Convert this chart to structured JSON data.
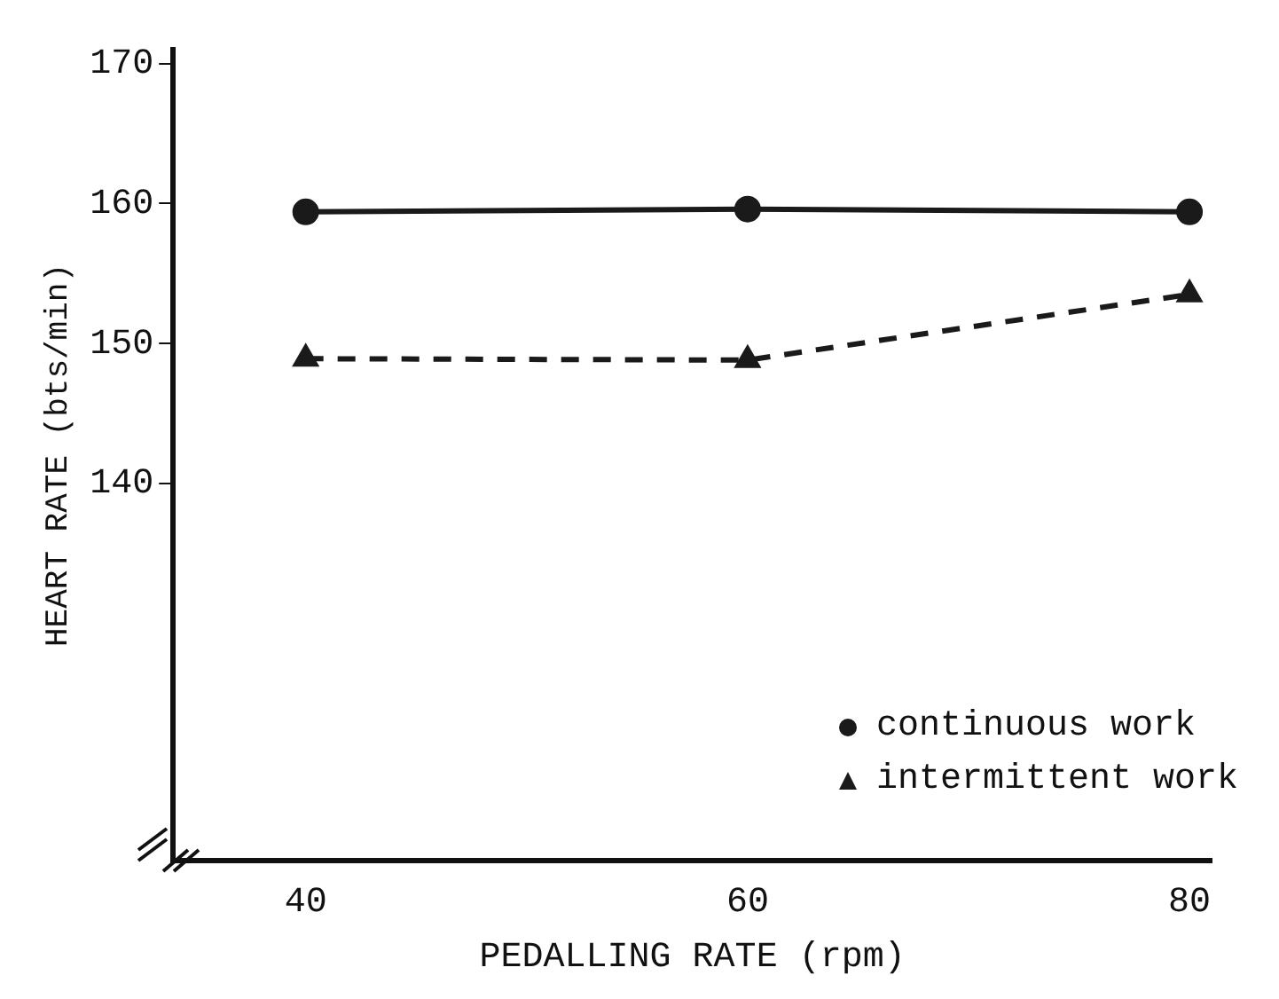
{
  "chart_data": {
    "type": "line",
    "xlabel": "PEDALLING RATE (rpm)",
    "ylabel": "HEART RATE (bts/min)",
    "x": [
      40,
      60,
      80
    ],
    "series": [
      {
        "name": "continuous work",
        "color": "#1a1a1a",
        "values": [
          159.4,
          159.6,
          159.4
        ],
        "marker": "circle",
        "line_style": "solid"
      },
      {
        "name": "intermittent work",
        "color": "#1a1a1a",
        "values": [
          148.9,
          148.8,
          153.5
        ],
        "marker": "triangle",
        "line_style": "dashed"
      }
    ],
    "xlim": [
      34,
      81
    ],
    "xticks": [
      40,
      60,
      80
    ],
    "ylim": [
      113,
      171
    ],
    "yticks": [
      140,
      150,
      160,
      170
    ],
    "legend": "bottom right"
  }
}
